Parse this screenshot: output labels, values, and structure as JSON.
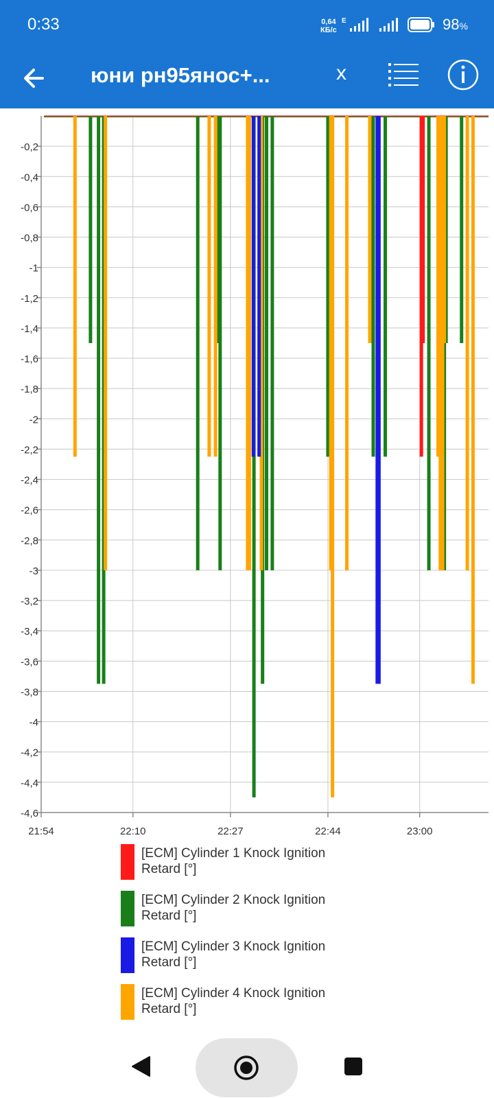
{
  "status_bar": {
    "time": "0:33",
    "net_speed_value": "0,64",
    "net_speed_unit": "КБ/с",
    "net_type": "E",
    "battery": "98",
    "battery_unit": "%"
  },
  "app_bar": {
    "title": "юни рн95янос+...",
    "close_label": "x"
  },
  "colors": {
    "bar": "#1a76d2",
    "cyl1": "#ff1a1a",
    "cyl2": "#1a7f1a",
    "cyl3": "#1a1ae6",
    "cyl4": "#ffa500"
  },
  "chart_data": {
    "type": "bar",
    "ylim": [
      -4.6,
      0
    ],
    "y_ticks": [
      "-0,2",
      "-0,4",
      "-0,6",
      "-0,8",
      "-1",
      "-1,2",
      "-1,4",
      "-1,6",
      "-1,8",
      "-2",
      "-2,2",
      "-2,4",
      "-2,6",
      "-2,8",
      "-3",
      "-3,2",
      "-3,4",
      "-3,6",
      "-3,8",
      "-4",
      "-4,2",
      "-4,4",
      "-4,6"
    ],
    "x_ticks": [
      "21:54",
      "22:10",
      "22:27",
      "22:44",
      "23:00"
    ],
    "x_tick_minutes": [
      0,
      16,
      33,
      50,
      66
    ],
    "xlim_minutes": [
      0,
      78
    ],
    "grid": true,
    "legend_position": "bottom",
    "series": [
      {
        "name": "[ECM] Cylinder 1 Knock Ignition Retard [°]",
        "color": "#ff1a1a",
        "points": [
          [
            66.3,
            -2.25
          ],
          [
            66.6,
            -1.5
          ]
        ]
      },
      {
        "name": "[ECM] Cylinder 2 Knock Ignition Retard [°]",
        "color": "#1a7f1a",
        "points": [
          [
            8.6,
            -1.5
          ],
          [
            10.0,
            -3.75
          ],
          [
            10.9,
            -3.75
          ],
          [
            27.3,
            -3.0
          ],
          [
            31.0,
            -1.5
          ],
          [
            31.2,
            -3.0
          ],
          [
            37.1,
            -4.5
          ],
          [
            38.6,
            -3.75
          ],
          [
            39.3,
            -3.0
          ],
          [
            40.3,
            -3.0
          ],
          [
            50.0,
            -2.25
          ],
          [
            57.7,
            -1.5
          ],
          [
            57.9,
            -2.25
          ],
          [
            60.0,
            -2.25
          ],
          [
            67.6,
            -3.0
          ],
          [
            70.3,
            -3.0
          ],
          [
            70.6,
            -1.5
          ],
          [
            73.3,
            -1.5
          ]
        ]
      },
      {
        "name": "[ECM] Cylinder 3 Knock Ignition Retard [°]",
        "color": "#1a1ae6",
        "points": [
          [
            37.0,
            -2.25
          ],
          [
            38.0,
            -2.25
          ],
          [
            58.6,
            -3.75
          ],
          [
            58.9,
            -3.75
          ]
        ]
      },
      {
        "name": "[ECM] Cylinder 4 Knock Ignition Retard [°]",
        "color": "#ffa500",
        "points": [
          [
            5.9,
            -2.25
          ],
          [
            11.2,
            -3.0
          ],
          [
            29.3,
            -2.25
          ],
          [
            30.4,
            -2.25
          ],
          [
            36.0,
            -3.0
          ],
          [
            36.3,
            -3.0
          ],
          [
            38.4,
            -3.0
          ],
          [
            50.5,
            -3.0
          ],
          [
            50.8,
            -4.5
          ],
          [
            53.3,
            -3.0
          ],
          [
            57.3,
            -1.5
          ],
          [
            69.2,
            -2.25
          ],
          [
            69.6,
            -3.0
          ],
          [
            70.0,
            -3.0
          ],
          [
            70.3,
            -1.5
          ],
          [
            74.3,
            -3.0
          ],
          [
            75.3,
            -3.75
          ]
        ]
      }
    ]
  }
}
